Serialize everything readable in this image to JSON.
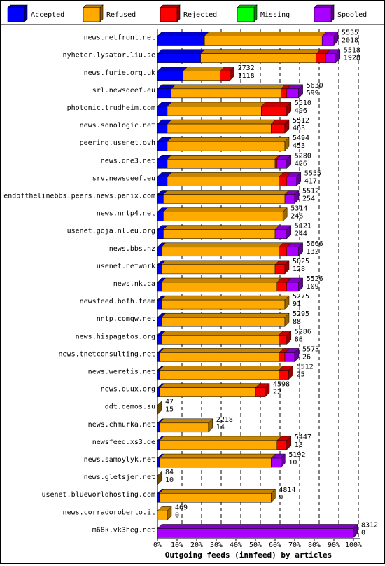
{
  "chart_data": {
    "type": "bar",
    "stacked": true,
    "orientation": "horizontal",
    "xlabel": "Outgoing feeds (innfeed) by articles",
    "xlim": [
      0,
      100
    ],
    "xticks": [
      "0%",
      "10%",
      "20%",
      "30%",
      "40%",
      "50%",
      "60%",
      "70%",
      "80%",
      "90%",
      "100%"
    ],
    "grid": true,
    "legend_position": "top",
    "legend": [
      {
        "name": "Accepted",
        "color": "#0000ff"
      },
      {
        "name": "Refused",
        "color": "#ffaa00"
      },
      {
        "name": "Rejected",
        "color": "#ff0000"
      },
      {
        "name": "Missing",
        "color": "#00ff00"
      },
      {
        "name": "Spooled",
        "color": "#aa00ff"
      }
    ],
    "rows": [
      {
        "name": "news.netfront.net",
        "total": "5535",
        "accepted": "2018",
        "pct": [
          24,
          60,
          0,
          0,
          6
        ]
      },
      {
        "name": "nyheter.lysator.liu.se",
        "total": "5518",
        "accepted": "1928",
        "pct": [
          22,
          59,
          5,
          0,
          5
        ]
      },
      {
        "name": "news.furie.org.uk",
        "total": "2732",
        "accepted": "1118",
        "pct": [
          13,
          19,
          5,
          0,
          0
        ]
      },
      {
        "name": "srl.newsdeef.eu",
        "total": "5630",
        "accepted": "599",
        "pct": [
          7,
          56,
          3,
          0,
          6
        ]
      },
      {
        "name": "photonic.trudheim.com",
        "total": "5510",
        "accepted": "496",
        "pct": [
          5,
          48,
          13,
          0,
          0
        ]
      },
      {
        "name": "news.sonologic.net",
        "total": "5512",
        "accepted": "463",
        "pct": [
          5,
          53,
          7,
          0,
          0
        ]
      },
      {
        "name": "peering.usenet.ovh",
        "total": "5494",
        "accepted": "453",
        "pct": [
          5,
          60,
          0,
          0,
          0
        ]
      },
      {
        "name": "news.dne3.net",
        "total": "5280",
        "accepted": "426",
        "pct": [
          5,
          55,
          1,
          0,
          5
        ]
      },
      {
        "name": "srv.newsdeef.eu",
        "total": "5555",
        "accepted": "417",
        "pct": [
          5,
          57,
          4,
          0,
          5
        ]
      },
      {
        "name": "endofthelinebbs.peers.news.panix.com",
        "total": "5512",
        "accepted": "254",
        "pct": [
          3,
          62,
          0,
          0,
          5
        ]
      },
      {
        "name": "news.nntp4.net",
        "total": "5314",
        "accepted": "246",
        "pct": [
          3,
          61,
          0,
          0,
          0
        ]
      },
      {
        "name": "usenet.goja.nl.eu.org",
        "total": "5121",
        "accepted": "244",
        "pct": [
          3,
          57,
          0,
          0,
          6
        ]
      },
      {
        "name": "news.bbs.nz",
        "total": "5666",
        "accepted": "132",
        "pct": [
          2,
          60,
          4,
          0,
          6
        ]
      },
      {
        "name": "usenet.network",
        "total": "5025",
        "accepted": "128",
        "pct": [
          2,
          58,
          5,
          0,
          0
        ]
      },
      {
        "name": "news.nk.ca",
        "total": "5526",
        "accepted": "109",
        "pct": [
          2,
          59,
          5,
          0,
          6
        ]
      },
      {
        "name": "newsfeed.bofh.team",
        "total": "5275",
        "accepted": "91",
        "pct": [
          2,
          63,
          0,
          0,
          0
        ]
      },
      {
        "name": "nntp.comgw.net",
        "total": "5295",
        "accepted": "88",
        "pct": [
          2,
          63,
          0,
          0,
          0
        ]
      },
      {
        "name": "news.hispagatos.org",
        "total": "5286",
        "accepted": "88",
        "pct": [
          2,
          60,
          4,
          0,
          0
        ]
      },
      {
        "name": "news.tnetconsulting.net",
        "total": "5573",
        "accepted": "26",
        "pct": [
          1,
          61,
          3,
          0,
          5
        ]
      },
      {
        "name": "news.weretis.net",
        "total": "5512",
        "accepted": "25",
        "pct": [
          1,
          61,
          5,
          0,
          0
        ]
      },
      {
        "name": "news.quux.org",
        "total": "4598",
        "accepted": "22",
        "pct": [
          1,
          49,
          5,
          0,
          0
        ]
      },
      {
        "name": "ddt.demos.su",
        "total": "47",
        "accepted": "15",
        "pct": [
          0,
          0,
          0,
          0,
          0
        ]
      },
      {
        "name": "news.chmurka.net",
        "total": "2218",
        "accepted": "14",
        "pct": [
          1,
          25,
          0,
          0,
          0
        ]
      },
      {
        "name": "newsfeed.xs3.de",
        "total": "5447",
        "accepted": "13",
        "pct": [
          1,
          60,
          5,
          0,
          0
        ]
      },
      {
        "name": "news.samoylyk.net",
        "total": "5192",
        "accepted": "10",
        "pct": [
          1,
          57,
          0,
          0,
          5
        ]
      },
      {
        "name": "news.gletsjer.net",
        "total": "84",
        "accepted": "10",
        "pct": [
          0,
          0,
          0,
          0,
          0
        ]
      },
      {
        "name": "usenet.blueworldhosting.com",
        "total": "4814",
        "accepted": "9",
        "pct": [
          1,
          57,
          0,
          0,
          0
        ]
      },
      {
        "name": "news.corradoroberto.it",
        "total": "469",
        "accepted": "0",
        "pct": [
          0,
          5,
          0,
          0,
          0
        ]
      },
      {
        "name": "m68k.vk3heg.net",
        "total": "8312",
        "accepted": "0",
        "pct": [
          0,
          0,
          0,
          0,
          100
        ]
      }
    ]
  }
}
